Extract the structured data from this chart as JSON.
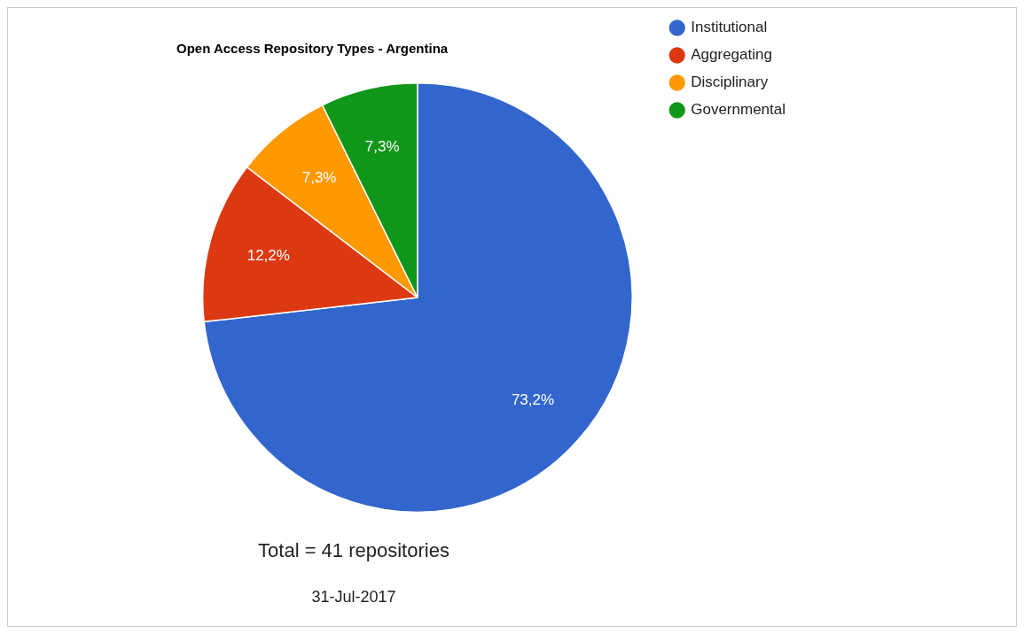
{
  "chart_data": {
    "type": "pie",
    "title": "Open Access Repository Types - Argentina",
    "categories": [
      "Institutional",
      "Aggregating",
      "Disciplinary",
      "Governmental"
    ],
    "values": [
      73.2,
      12.2,
      7.3,
      7.3
    ],
    "colors": [
      "#3366cc",
      "#dc3912",
      "#ff9900",
      "#109618"
    ],
    "value_labels": [
      "73,2%",
      "12,2%",
      "7,3%",
      "7,3%"
    ],
    "legend": "top right",
    "annotations": [
      "Total = 41 repositories",
      "31-Jul-2017"
    ]
  }
}
